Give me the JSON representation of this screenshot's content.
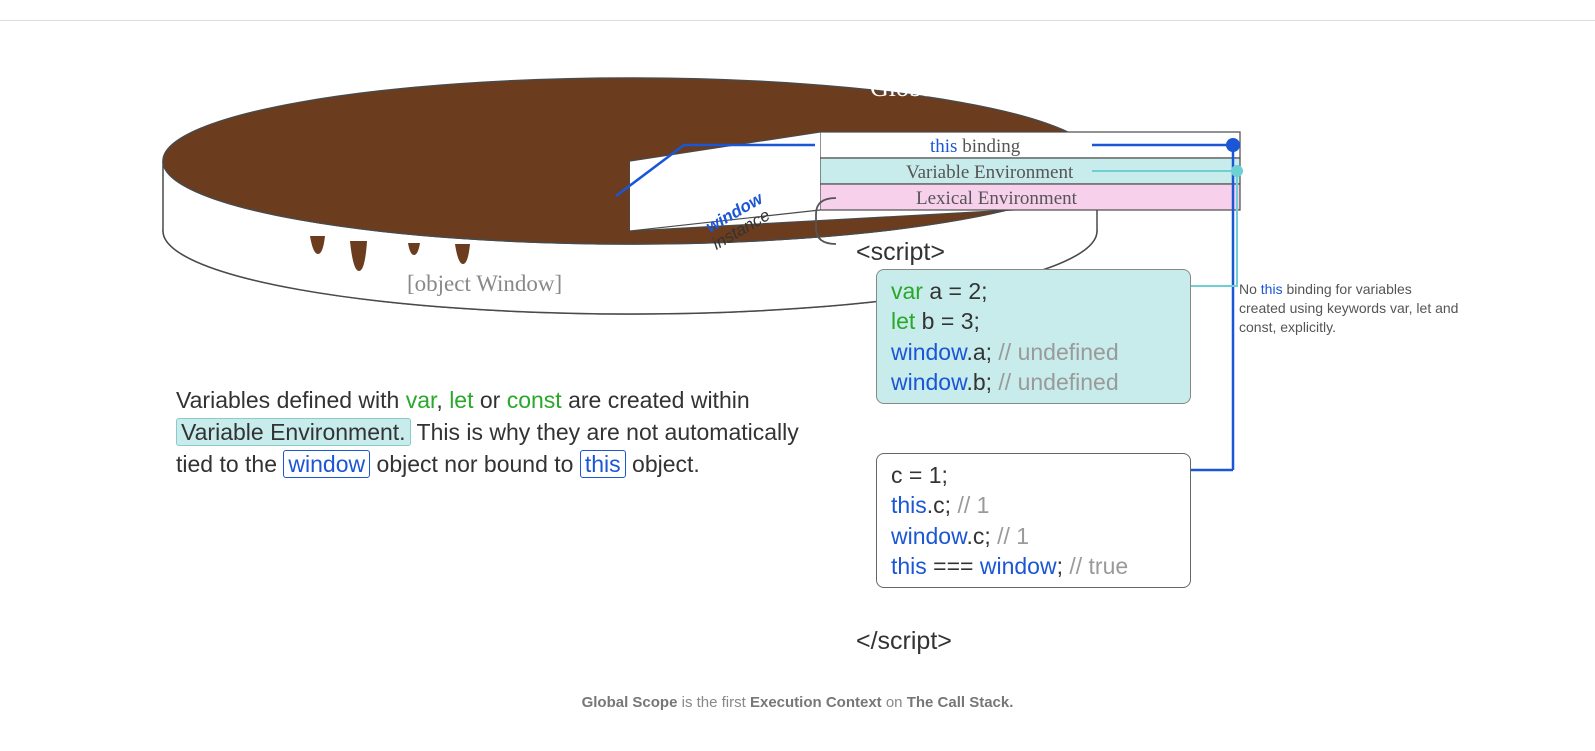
{
  "colors": {
    "brown": "#6b3c1d",
    "bandWhite": "#ffffff",
    "bandCyan": "#c8ebeb",
    "bandPink": "#f7d0ec",
    "blue": "#1a56d6",
    "cyanDot": "#6cd0d4",
    "green": "#2aa82a",
    "grey": "#9a9a9a",
    "darkText": "#333333",
    "outline": "#4a4a4a"
  },
  "disc": {
    "title": "Global Scope",
    "bottomLabel": "[object Window]",
    "wedgeLabel": {
      "top": "window",
      "bottom": "instance"
    },
    "bands": [
      {
        "key": "this",
        "pre": "this",
        "post": " binding",
        "bg": "#ffffff"
      },
      {
        "key": "varEnv",
        "label": "Variable Environment",
        "bg": "#c8ebeb"
      },
      {
        "key": "lexEnv",
        "label": "Lexical Environment",
        "bg": "#f7d0ec"
      }
    ]
  },
  "scriptTag": {
    "open": "<script>",
    "close": "</script​>"
  },
  "codebox1": {
    "bg": "#c8ebeb",
    "lines": [
      {
        "html": "<span class='kw-green'>var</span> a = 2;"
      },
      {
        "html": "<span class='kw-green'>let</span> b = 3;"
      },
      {
        "html": "<span class='kw-blue'>window</span>.a; <span class='grey'>// undefined</span>"
      },
      {
        "html": "<span class='kw-blue'>window</span>.b; <span class='grey'>// undefined</span>"
      }
    ]
  },
  "codebox2": {
    "bg": "#ffffff",
    "lines": [
      {
        "html": "c = 1;"
      },
      {
        "html": "<span class='kw-blue'>this</span>.c; <span class='grey'>// 1</span>"
      },
      {
        "html": "<span class='kw-blue'>window</span>.c; <span class='grey'>// 1</span>"
      },
      {
        "html": "<span class='kw-blue'>this</span> === <span class='kw-blue'>window</span>; <span class='grey'>// true</span>"
      }
    ]
  },
  "paragraph": {
    "html": "Variables defined with <span class='kw-green'>var</span>, <span class='kw-green'>let</span> or <span class='kw-green'>const</span> are created within <span class='boxed-ve'>Variable Environment.</span> This is why they are not automatically tied to the <span class='boxed kw-blue'>window</span> object nor bound to <span class='boxed kw-blue'>this</span> object."
  },
  "note": {
    "html": "No <span class='kw-blue'>this</span> binding for variables created using keywords var, let and const, explicitly."
  },
  "caption": {
    "html": "<b>Global Scope</b> is the first <b>Execution Context</b> on <b>The Call Stack.</b>"
  }
}
